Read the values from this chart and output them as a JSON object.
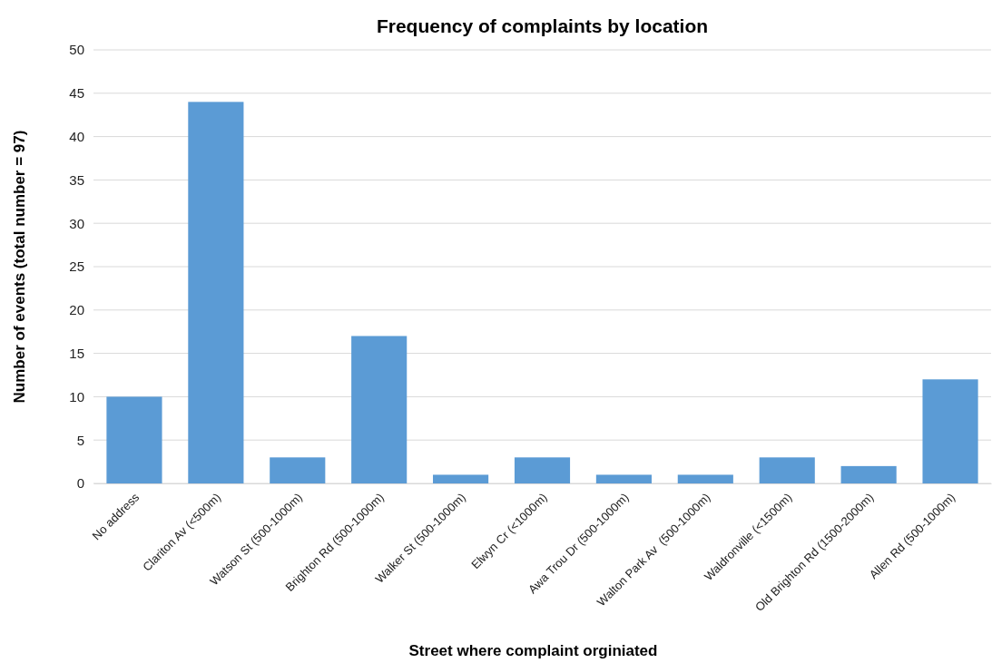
{
  "chart_data": {
    "type": "bar",
    "title": "Frequency of complaints by location",
    "xlabel": "Street where complaint orginiated",
    "ylabel": "Number of events (total number = 97)",
    "categories": [
      "No address",
      "Clariton Av (<500m)",
      "Watson St (500-1000m)",
      "Brighton Rd (500-1000m)",
      "Walker St (500-1000m)",
      "Elwyn Cr (<1000m)",
      "Awa Trou Dr (500-1000m)",
      "Walton Park Av  (500-1000m)",
      "Waldronville (<1500m)",
      "Old Brighton Rd (1500-2000m)",
      "Allen Rd (500-1000m)"
    ],
    "values": [
      10,
      44,
      3,
      17,
      1,
      3,
      1,
      1,
      3,
      2,
      12
    ],
    "color": "#5b9bd5",
    "ylim": [
      0,
      50
    ],
    "yticks": [
      0,
      5,
      10,
      15,
      20,
      25,
      30,
      35,
      40,
      45,
      50
    ],
    "grid": "y"
  }
}
